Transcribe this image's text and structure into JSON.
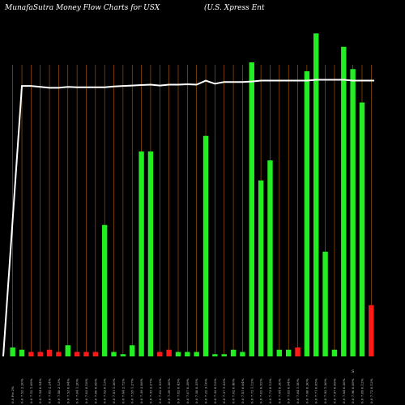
{
  "chart_data": {
    "type": "bar",
    "title": "MunafaSutra  Money Flow  Charts for USX",
    "subtitle": "(U.S. Xpress Ent",
    "colors": {
      "background": "#000000",
      "up": "#22ee22",
      "down": "#ff1a1a",
      "line": "#ffffff",
      "grid": "#b8600a"
    },
    "categories": [
      "0.0 Fri 2%",
      "0.0 7.52 2.20%",
      "0.0 7.52 1.69%",
      "0.0 7.54 0.54%",
      "0.0 7.45 2.24%",
      "0.0 7.48 2.13%",
      "0.0 7.53 0.04%",
      "0.0 7.64 1.20%",
      "0.0 7.63 0.18%",
      "0.0 7.60 0.06%",
      "0.0 7.52 0.13%",
      "0.0 7.41 1.36%",
      "0.0 7.44 2.72%",
      "0.0 7.55 1.27%",
      "0.0 7.39 3.08%",
      "0.0 7.35 2.27%",
      "0.0 7.62 2.53%",
      "0.0 7.39 1.38%",
      "0.0 7.82 0.43%",
      "0.0 7.67 0.39%",
      "0.0 7.58 0.35%",
      "0.0 7.22 3.16%",
      "0.0 7.32 0.12%",
      "0.0 7.37 1.33%",
      "0.0 7.62 0.40%",
      "0.0 7.41 0.64%",
      "0.0 7.72 1.12%",
      "0.0 7.62 0.52%",
      "0.0 7.73 0.13%",
      "0.0 7.84 0.30%",
      "0.0 7.85 0.04%",
      "0.0 7.84 1.50%",
      "0.0 7.66 0.30%",
      "0.0 7.71 0.05%",
      "0.0 7.92 1.36%",
      "0.0 7.97 0.09%",
      "0.0 7.84 0.38%",
      "0.0 7.90 0.09%",
      "0.0 7.89 0.12%",
      "0.0 7.72 0.12%"
    ],
    "values": [
      4,
      3,
      2,
      2,
      3,
      2,
      5,
      2,
      2,
      2,
      59,
      2,
      1,
      5,
      92,
      92,
      2,
      3,
      2,
      2,
      2,
      99,
      1,
      1,
      3,
      2,
      132,
      79,
      88,
      3,
      3,
      4,
      128,
      145,
      47,
      3,
      139,
      129,
      114,
      23
    ],
    "directions": [
      "up",
      "up",
      "down",
      "down",
      "down",
      "down",
      "up",
      "down",
      "down",
      "down",
      "up",
      "up",
      "up",
      "up",
      "up",
      "up",
      "down",
      "down",
      "up",
      "up",
      "up",
      "up",
      "up",
      "up",
      "up",
      "up",
      "up",
      "up",
      "up",
      "up",
      "up",
      "down",
      "up",
      "up",
      "up",
      "up",
      "up",
      "up",
      "up",
      "down"
    ],
    "series": [
      {
        "values": [
          60,
          60,
          60,
          60,
          60,
          60,
          60,
          60,
          60,
          60,
          60,
          60,
          60,
          60,
          60,
          60,
          60,
          60,
          60,
          60,
          60,
          60,
          60,
          60,
          60,
          60,
          60,
          60,
          60,
          60,
          60,
          60,
          60,
          60,
          60,
          60,
          60,
          60,
          60,
          60
        ]
      }
    ],
    "line_values": [
      0,
      60.7,
      60.7,
      60.5,
      60.3,
      60.3,
      60.5,
      60.4,
      60.4,
      60.4,
      60.4,
      60.6,
      60.7,
      60.8,
      60.9,
      61.0,
      60.8,
      61.0,
      61.0,
      61.1,
      61.0,
      61.9,
      61.2,
      61.6,
      61.6,
      61.6,
      61.7,
      61.9,
      61.9,
      61.9,
      61.9,
      61.9,
      61.9,
      62.1,
      62.1,
      62.1,
      62.1,
      61.9,
      61.9,
      61.9
    ],
    "grid": "vertical",
    "legend": "none",
    "ylim": [
      0,
      160
    ],
    "marker": "S"
  }
}
